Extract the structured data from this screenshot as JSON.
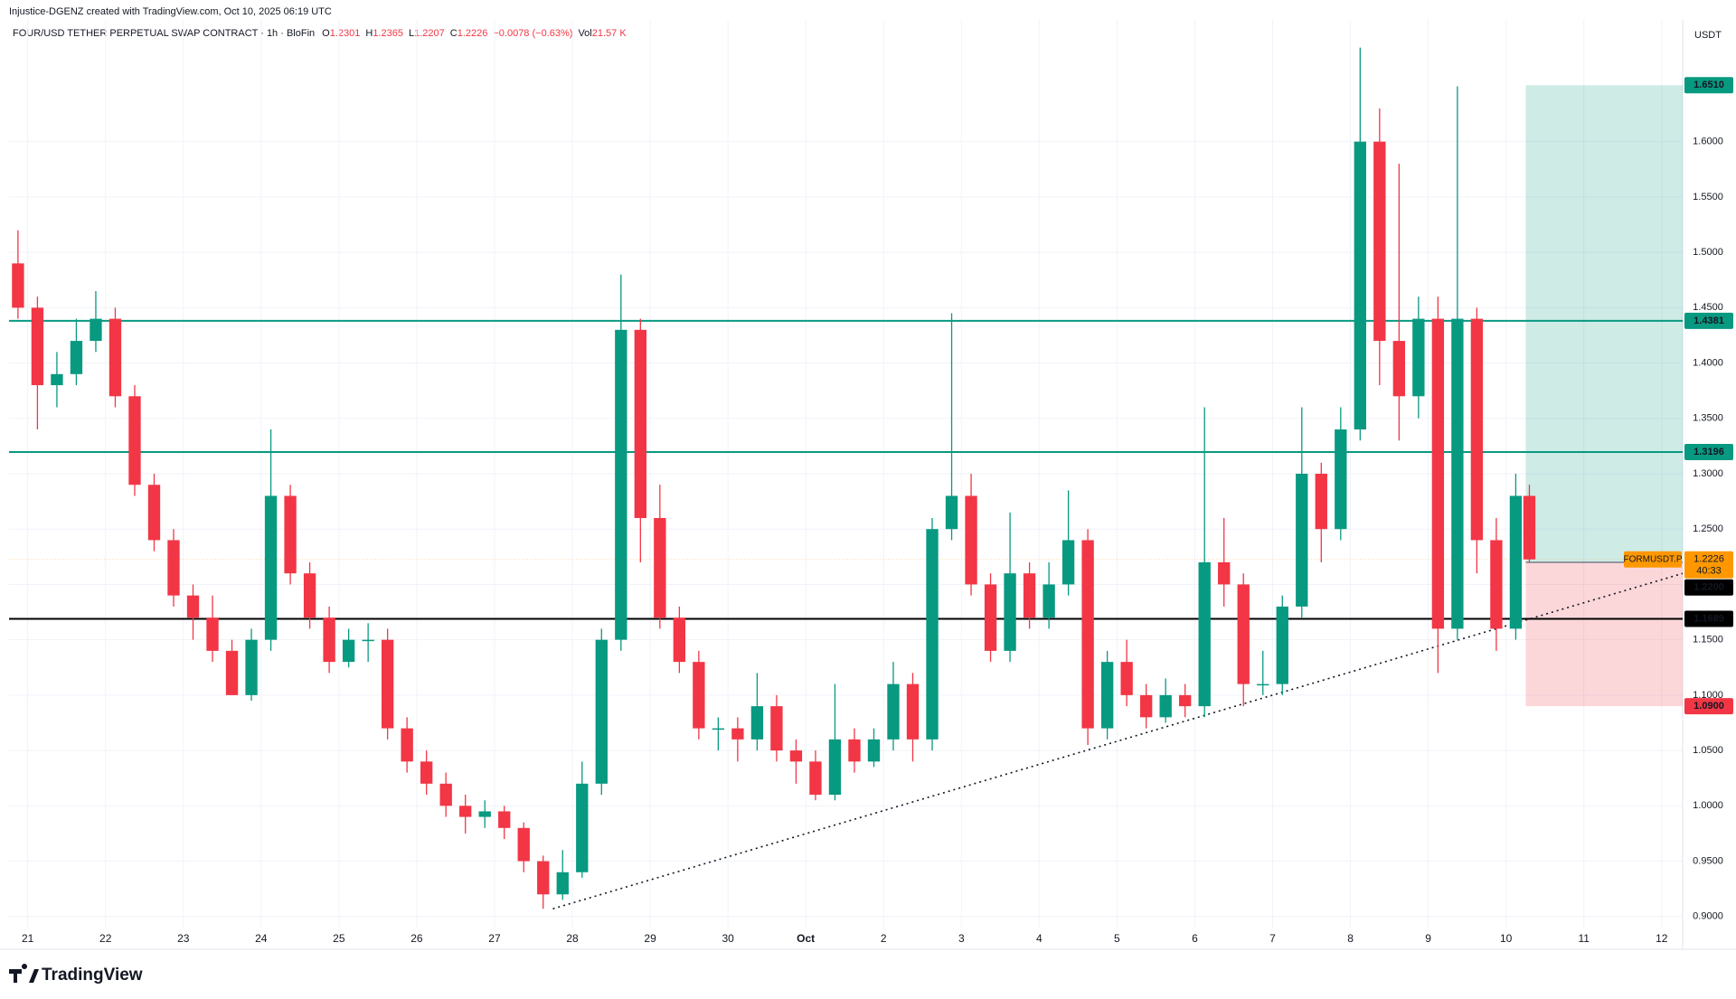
{
  "header": "Injustice-DGENZ created with TradingView.com, Oct 10, 2025 06:19 UTC",
  "legend": {
    "symbol": "FOUR/USD TETHER PERPETUAL SWAP CONTRACT · 1h · BloFin",
    "ohlc": [
      {
        "key": "O",
        "value": "1.2301"
      },
      {
        "key": "H",
        "value": "1.2365"
      },
      {
        "key": "L",
        "value": "1.2207"
      },
      {
        "key": "C",
        "value": "1.2226"
      }
    ],
    "change": "−0.0078 (−0.63%)",
    "volume_key": "Vol",
    "volume": "21.57 K"
  },
  "logo": "TradingView",
  "chart_data": {
    "type": "candlestick",
    "axis_unit": "USDT",
    "grid": true,
    "up_color": "#089981",
    "down_color": "#f23645",
    "xlim": [
      -0.24,
      21.27
    ],
    "xticks": [
      {
        "value": 0,
        "label": "21"
      },
      {
        "value": 1,
        "label": "22"
      },
      {
        "value": 2,
        "label": "23"
      },
      {
        "value": 3,
        "label": "24"
      },
      {
        "value": 4,
        "label": "25"
      },
      {
        "value": 5,
        "label": "26"
      },
      {
        "value": 6,
        "label": "27"
      },
      {
        "value": 7,
        "label": "28"
      },
      {
        "value": 8,
        "label": "29"
      },
      {
        "value": 9,
        "label": "30"
      },
      {
        "value": 10,
        "label": "Oct"
      },
      {
        "value": 11,
        "label": "2"
      },
      {
        "value": 12,
        "label": "3"
      },
      {
        "value": 13,
        "label": "4"
      },
      {
        "value": 14,
        "label": "5"
      },
      {
        "value": 15,
        "label": "6"
      },
      {
        "value": 16,
        "label": "7"
      },
      {
        "value": 17,
        "label": "8"
      },
      {
        "value": 18,
        "label": "9"
      },
      {
        "value": 19,
        "label": "10"
      },
      {
        "value": 20,
        "label": "11"
      },
      {
        "value": 21,
        "label": "12"
      }
    ],
    "ylim": [
      0.89,
      1.71
    ],
    "yticks": [
      {
        "value": 0.9,
        "label": "0.9000"
      },
      {
        "value": 0.95,
        "label": "0.9500"
      },
      {
        "value": 1.0,
        "label": "1.0000"
      },
      {
        "value": 1.05,
        "label": "1.0500"
      },
      {
        "value": 1.1,
        "label": "1.1000"
      },
      {
        "value": 1.15,
        "label": "1.1500"
      },
      {
        "value": 1.2,
        "label": "1.2000"
      },
      {
        "value": 1.25,
        "label": "1.2500"
      },
      {
        "value": 1.3,
        "label": "1.3000"
      },
      {
        "value": 1.35,
        "label": "1.3500"
      },
      {
        "value": 1.4,
        "label": "1.4000"
      },
      {
        "value": 1.45,
        "label": "1.4500"
      },
      {
        "value": 1.5,
        "label": "1.5000"
      },
      {
        "value": 1.55,
        "label": "1.5500"
      },
      {
        "value": 1.6,
        "label": "1.6000"
      }
    ],
    "x": [
      -0.125,
      0.125,
      0.375,
      0.625,
      0.875,
      1.125,
      1.375,
      1.625,
      1.875,
      2.125,
      2.375,
      2.625,
      2.875,
      3.125,
      3.375,
      3.625,
      3.875,
      4.125,
      4.375,
      4.625,
      4.875,
      5.125,
      5.375,
      5.625,
      5.875,
      6.125,
      6.375,
      6.625,
      6.875,
      7.125,
      7.375,
      7.625,
      7.875,
      8.125,
      8.375,
      8.625,
      8.875,
      9.125,
      9.375,
      9.625,
      9.875,
      10.125,
      10.375,
      10.625,
      10.875,
      11.125,
      11.375,
      11.625,
      11.875,
      12.125,
      12.375,
      12.625,
      12.875,
      13.125,
      13.375,
      13.625,
      13.875,
      14.125,
      14.375,
      14.625,
      14.875,
      15.125,
      15.375,
      15.625,
      15.875,
      16.125,
      16.375,
      16.625,
      16.875,
      17.125,
      17.375,
      17.625,
      17.875,
      18.125,
      18.375,
      18.625,
      18.875,
      19.125,
      19.3
    ],
    "open": [
      1.49,
      1.45,
      1.38,
      1.39,
      1.42,
      1.44,
      1.37,
      1.29,
      1.24,
      1.19,
      1.17,
      1.14,
      1.1,
      1.15,
      1.28,
      1.21,
      1.17,
      1.13,
      1.15,
      1.15,
      1.07,
      1.04,
      1.02,
      1.0,
      0.99,
      0.995,
      0.98,
      0.95,
      0.92,
      0.94,
      1.02,
      1.15,
      1.43,
      1.26,
      1.17,
      1.13,
      1.07,
      1.07,
      1.06,
      1.09,
      1.05,
      1.04,
      1.01,
      1.06,
      1.04,
      1.06,
      1.11,
      1.06,
      1.25,
      1.28,
      1.2,
      1.14,
      1.21,
      1.17,
      1.2,
      1.24,
      1.07,
      1.13,
      1.1,
      1.08,
      1.1,
      1.09,
      1.22,
      1.2,
      1.11,
      1.11,
      1.18,
      1.3,
      1.25,
      1.34,
      1.6,
      1.42,
      1.37,
      1.44,
      1.16,
      1.44,
      1.24,
      1.16,
      1.28
    ],
    "high": [
      1.52,
      1.46,
      1.41,
      1.44,
      1.465,
      1.45,
      1.38,
      1.3,
      1.25,
      1.2,
      1.19,
      1.15,
      1.16,
      1.34,
      1.29,
      1.22,
      1.18,
      1.16,
      1.165,
      1.16,
      1.08,
      1.05,
      1.03,
      1.01,
      1.005,
      1.0,
      0.985,
      0.955,
      0.96,
      1.04,
      1.16,
      1.48,
      1.44,
      1.29,
      1.18,
      1.14,
      1.08,
      1.08,
      1.12,
      1.1,
      1.06,
      1.05,
      1.11,
      1.07,
      1.07,
      1.13,
      1.12,
      1.26,
      1.445,
      1.3,
      1.21,
      1.265,
      1.22,
      1.22,
      1.285,
      1.25,
      1.14,
      1.15,
      1.11,
      1.115,
      1.11,
      1.36,
      1.26,
      1.21,
      1.14,
      1.19,
      1.36,
      1.31,
      1.36,
      1.685,
      1.63,
      1.58,
      1.46,
      1.46,
      1.65,
      1.45,
      1.26,
      1.3,
      1.29
    ],
    "low": [
      1.44,
      1.34,
      1.36,
      1.38,
      1.41,
      1.36,
      1.28,
      1.23,
      1.18,
      1.15,
      1.13,
      1.1,
      1.095,
      1.14,
      1.2,
      1.16,
      1.12,
      1.125,
      1.13,
      1.06,
      1.03,
      1.01,
      0.99,
      0.975,
      0.98,
      0.97,
      0.94,
      0.907,
      0.915,
      0.935,
      1.01,
      1.14,
      1.22,
      1.16,
      1.12,
      1.06,
      1.05,
      1.04,
      1.05,
      1.04,
      1.02,
      1.005,
      1.005,
      1.03,
      1.035,
      1.05,
      1.04,
      1.05,
      1.24,
      1.19,
      1.13,
      1.13,
      1.16,
      1.16,
      1.19,
      1.055,
      1.06,
      1.09,
      1.07,
      1.075,
      1.08,
      1.08,
      1.18,
      1.09,
      1.1,
      1.1,
      1.17,
      1.22,
      1.24,
      1.33,
      1.38,
      1.33,
      1.35,
      1.12,
      1.15,
      1.21,
      1.14,
      1.15,
      1.22
    ],
    "close": [
      1.45,
      1.38,
      1.39,
      1.42,
      1.44,
      1.37,
      1.29,
      1.24,
      1.19,
      1.17,
      1.14,
      1.1,
      1.15,
      1.28,
      1.21,
      1.17,
      1.13,
      1.15,
      1.15,
      1.07,
      1.04,
      1.02,
      1.0,
      0.99,
      0.995,
      0.98,
      0.95,
      0.92,
      0.94,
      1.02,
      1.15,
      1.43,
      1.26,
      1.17,
      1.13,
      1.07,
      1.07,
      1.06,
      1.09,
      1.05,
      1.04,
      1.01,
      1.06,
      1.04,
      1.06,
      1.11,
      1.06,
      1.25,
      1.28,
      1.2,
      1.14,
      1.21,
      1.17,
      1.2,
      1.24,
      1.07,
      1.13,
      1.1,
      1.08,
      1.1,
      1.09,
      1.22,
      1.2,
      1.11,
      1.11,
      1.18,
      1.3,
      1.25,
      1.34,
      1.6,
      1.42,
      1.37,
      1.44,
      1.16,
      1.44,
      1.24,
      1.16,
      1.28,
      1.2226
    ],
    "hlines": [
      {
        "value": 1.4381,
        "label": "1.4381",
        "color": "#089981"
      },
      {
        "value": 1.3196,
        "label": "1.3196",
        "color": "#089981"
      },
      {
        "value": 1.1689,
        "label": "1.1689",
        "color": "#000000"
      }
    ],
    "trendline": {
      "x": [
        6.75,
        19.5
      ],
      "y": [
        0.907,
        1.173
      ]
    },
    "last_price": {
      "value": 1.2226,
      "label": "1.2226",
      "symbol": "FORMUSDT.P",
      "countdown": "40:33",
      "color": "#ff9800"
    },
    "position": {
      "target": {
        "value": 1.651,
        "label": "1.6510",
        "color": "#089981"
      },
      "entry": {
        "value": 1.22,
        "label": "1.2200",
        "color": "#000000"
      },
      "stop": {
        "value": 1.09,
        "label": "1.0900",
        "color": "#f23645"
      }
    }
  }
}
